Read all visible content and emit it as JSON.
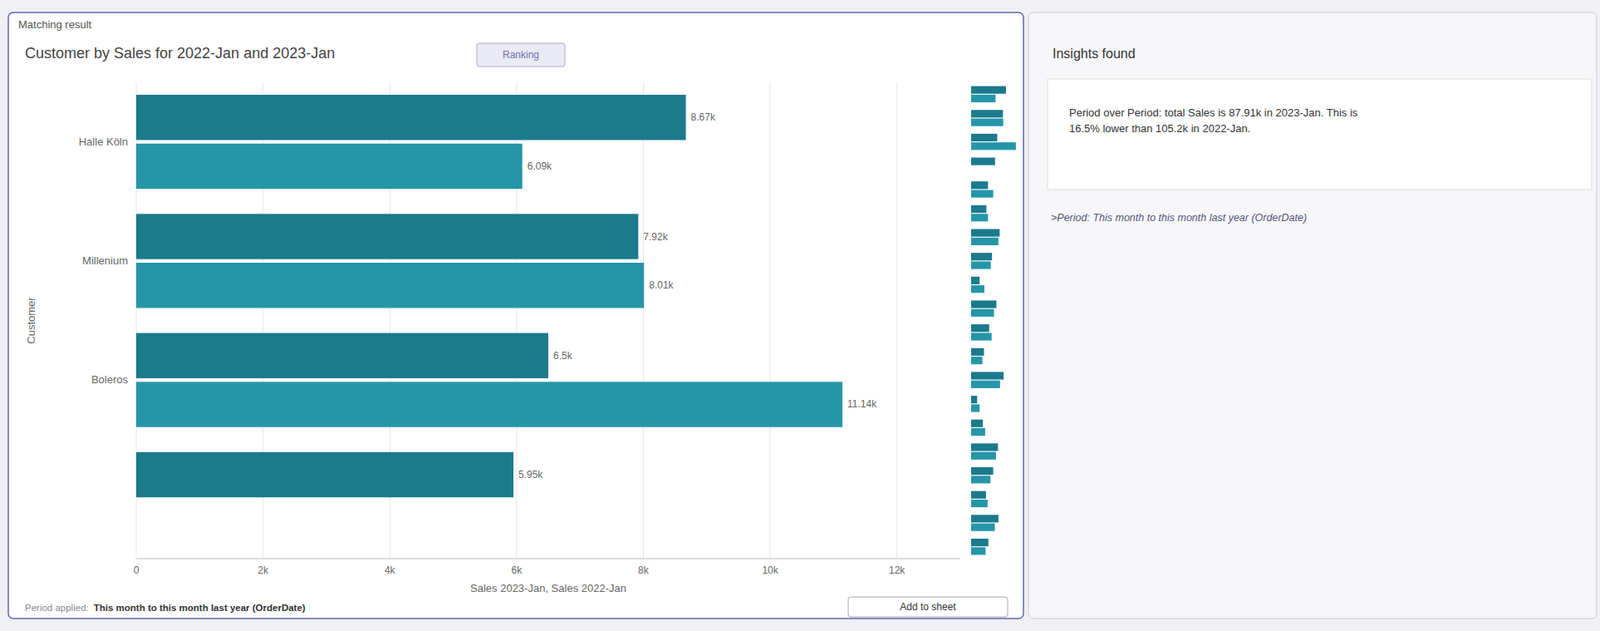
{
  "chart_data": [
    {
      "type": "bar",
      "orientation": "horizontal",
      "title": "Customer by Sales for 2022-Jan and 2023-Jan",
      "x_label": "Sales 2023-Jan, Sales 2022-Jan",
      "y_label": "Customer",
      "categories": [
        "Halle Köln",
        "Millenium",
        "Boleros",
        null
      ],
      "series": [
        {
          "color": "#1b7a8c",
          "values": [
            8670,
            7920,
            6500,
            5950
          ],
          "value_labels": [
            "8.67k",
            "7.92k",
            "6.5k",
            "5.95k"
          ]
        },
        {
          "color": "#2596a8",
          "values": [
            6090,
            8010,
            11140,
            0
          ],
          "value_labels": [
            "6.09k",
            "8.01k",
            "11.14k",
            null
          ]
        }
      ],
      "xlim": [
        0,
        13000
      ],
      "xticks": [
        0,
        {
          "value": 2000,
          "label": "2k"
        },
        {
          "value": 4000,
          "label": "4k"
        },
        {
          "value": 6000,
          "label": "6k"
        },
        {
          "value": 8000,
          "label": "8k"
        },
        {
          "value": 10000,
          "label": "10k"
        },
        {
          "value": 12000,
          "label": "12k"
        }
      ],
      "grid": true,
      "data_labels": true,
      "annotations": [
        "Matching result",
        "Ranking",
        "Insights found",
        "Period over Period: total Sales is 87.91k in 2023-Jan. This is\n16.5% lower than 105.2k in 2022-Jan.",
        ">Period: This month to this month last year (OrderDate)",
        "Period applied:",
        "This month to this month last year (OrderDate)",
        "Add to sheet"
      ]
    },
    {
      "type": "bar",
      "orientation": "horizontal",
      "categories": [
        null,
        null,
        null,
        null,
        null,
        null,
        null,
        null,
        null,
        null,
        null,
        null,
        null,
        null,
        null,
        null,
        null,
        null,
        null,
        null
      ],
      "series": [
        {
          "color": "#1b7a8c",
          "values": [
            8670,
            7920,
            6500,
            5950,
            4200,
            3800,
            7100,
            5200,
            2100,
            6300,
            4500,
            3200,
            8100,
            1500,
            2900,
            6700,
            5500,
            3700,
            6800,
            4300
          ]
        },
        {
          "color": "#2596a8",
          "values": [
            6090,
            8010,
            11140,
            0,
            5500,
            4200,
            6800,
            4900,
            3300,
            5700,
            5100,
            2800,
            7200,
            2100,
            3500,
            6200,
            4800,
            4100,
            5900,
            3600
          ]
        }
      ],
      "xlim": [
        0,
        12000
      ],
      "grid": false,
      "tick_labels": false
    }
  ]
}
